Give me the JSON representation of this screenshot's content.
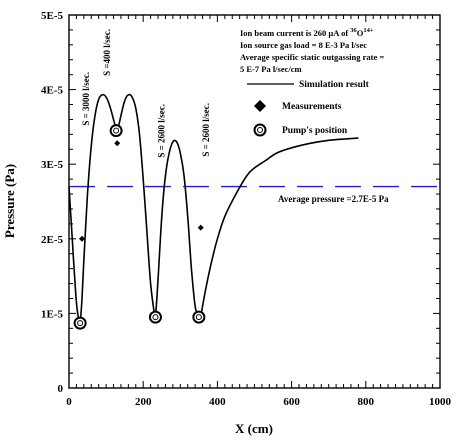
{
  "chart_data": {
    "type": "line",
    "xlabel": "X (cm)",
    "ylabel": "Pressure (Pa)",
    "xlim": [
      0,
      1000
    ],
    "ylim": [
      0,
      5e-05
    ],
    "x_ticks": [
      {
        "value": 0,
        "label": "0"
      },
      {
        "value": 200,
        "label": "200"
      },
      {
        "value": 400,
        "label": "400"
      },
      {
        "value": 600,
        "label": "600"
      },
      {
        "value": 800,
        "label": "800"
      },
      {
        "value": 1000,
        "label": "1000"
      }
    ],
    "y_ticks": [
      {
        "value": 0,
        "label": "0"
      },
      {
        "value": 1e-05,
        "label": "1E-5"
      },
      {
        "value": 2e-05,
        "label": "2E-5"
      },
      {
        "value": 3e-05,
        "label": "3E-5"
      },
      {
        "value": 4e-05,
        "label": "4E-5"
      },
      {
        "value": 5e-05,
        "label": "5E-5"
      }
    ],
    "annotation_lines": [
      {
        "prefix": "Ion beam current is 260 µA of ",
        "sup1": "36",
        "mid": "O",
        "sup2": "14+"
      },
      {
        "text": "Ion source gas load = 8 E-3 Pa l/sec"
      },
      {
        "text": "Average specific static outgassing rate ="
      },
      {
        "text": "5 E-7 Pa l/sec/cm"
      }
    ],
    "legend": [
      {
        "label": "Simulation result",
        "marker": "line"
      },
      {
        "label": "Measurements",
        "marker": "filled-diamond"
      },
      {
        "label": "Pump's position",
        "marker": "open-circle"
      }
    ],
    "series": [
      {
        "name": "Simulation result",
        "type": "line",
        "x": [
          0,
          5,
          10,
          15,
          20,
          25,
          30,
          35,
          40,
          50,
          60,
          70,
          80,
          90,
          100,
          110,
          120,
          127,
          133,
          140,
          150,
          160,
          170,
          180,
          190,
          200,
          210,
          220,
          230,
          233,
          240,
          250,
          260,
          270,
          280,
          290,
          300,
          310,
          320,
          330,
          340,
          350,
          355,
          360,
          380,
          400,
          420,
          450,
          480,
          500,
          530,
          560,
          600,
          650,
          700,
          750,
          780
        ],
        "y": [
          2.7e-05,
          2.3e-05,
          1.9e-05,
          1.5e-05,
          1.15e-05,
          9.5e-06,
          8.8e-06,
          1.2e-05,
          1.7e-05,
          2.6e-05,
          3.25e-05,
          3.65e-05,
          3.87e-05,
          3.93e-05,
          3.9e-05,
          3.78e-05,
          3.6e-05,
          3.48e-05,
          3.5e-05,
          3.65e-05,
          3.85e-05,
          3.93e-05,
          3.9e-05,
          3.75e-05,
          3.4e-05,
          2.8e-05,
          2.1e-05,
          1.4e-05,
          1e-05,
          9.5e-06,
          1.45e-05,
          2.3e-05,
          2.85e-05,
          3.15e-05,
          3.3e-05,
          3.3e-05,
          3.15e-05,
          2.85e-05,
          2.3e-05,
          1.6e-05,
          1.1e-05,
          9.2e-06,
          9.2e-06,
          1.1e-05,
          1.6e-05,
          2e-05,
          2.3e-05,
          2.6e-05,
          2.85e-05,
          2.95e-05,
          3.05e-05,
          3.15e-05,
          3.22e-05,
          3.28e-05,
          3.32e-05,
          3.34e-05,
          3.35e-05
        ]
      },
      {
        "name": "Measurements",
        "type": "scatter",
        "marker": "filled-diamond",
        "x": [
          35,
          130,
          355
        ],
        "y": [
          2e-05,
          3.28e-05,
          2.15e-05
        ]
      },
      {
        "name": "Pump's position",
        "type": "scatter",
        "marker": "open-circle",
        "x": [
          30,
          127,
          233,
          350
        ],
        "y": [
          8.7e-06,
          3.45e-05,
          9.5e-06,
          9.5e-06
        ]
      },
      {
        "name": "Average pressure",
        "type": "dashed-line",
        "value": 2.7e-05
      }
    ],
    "average_pressure_label": "Average pressure =2.7E-5 Pa",
    "pump_labels": [
      {
        "x": 30,
        "text": "S = 3000 l/sec."
      },
      {
        "x": 127,
        "text": "S =400 l/sec."
      },
      {
        "x": 233,
        "text": "S = 2600 l/sec."
      },
      {
        "x": 350,
        "text": "S = 2600 l/sec."
      }
    ],
    "colors": {
      "curve": "#000000",
      "average_line": "#1f1fd0",
      "axes": "#000000"
    }
  }
}
